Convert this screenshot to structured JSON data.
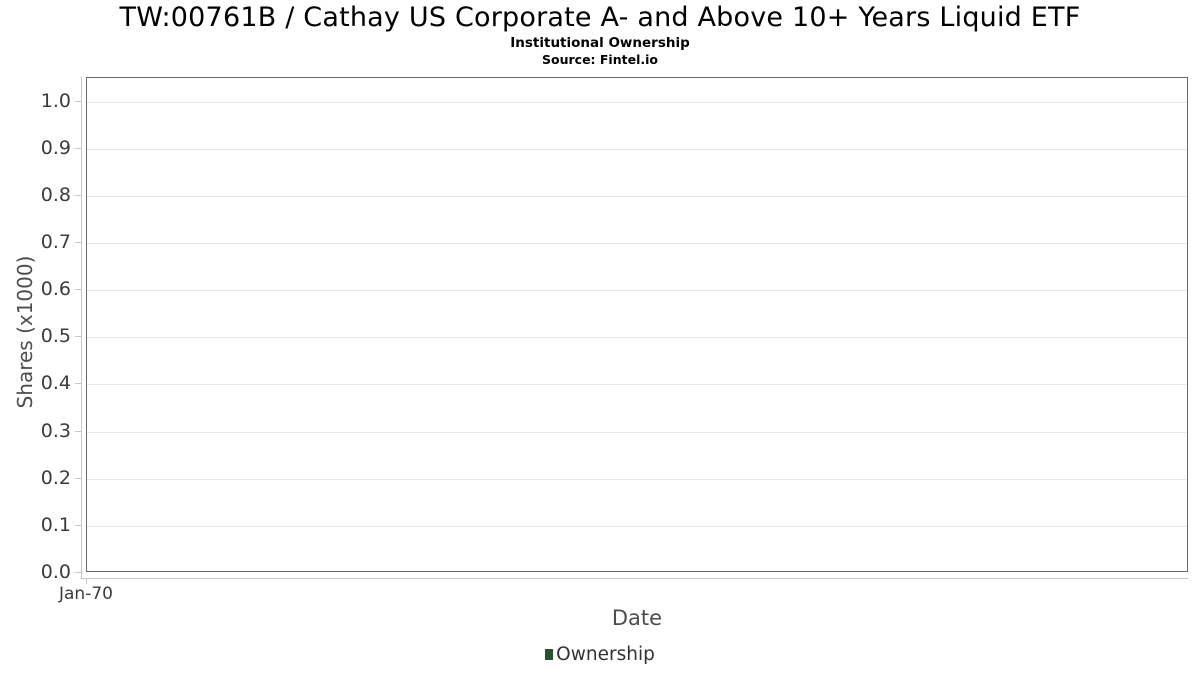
{
  "header": {
    "title": "TW:00761B / Cathay US Corporate A- and Above 10+ Years Liquid ETF",
    "subtitle": "Institutional Ownership",
    "source": "Source: Fintel.io"
  },
  "chart_data": {
    "type": "line",
    "title": "TW:00761B / Cathay US Corporate A- and Above 10+ Years Liquid ETF",
    "subtitle": "Institutional Ownership",
    "source": "Source: Fintel.io",
    "xlabel": "Date",
    "ylabel": "Shares (x1000)",
    "x_tick_labels": [
      "Jan-70"
    ],
    "y_tick_labels": [
      "0.0",
      "0.1",
      "0.2",
      "0.3",
      "0.4",
      "0.5",
      "0.6",
      "0.7",
      "0.8",
      "0.9",
      "1.0"
    ],
    "y_tick_values": [
      0,
      0.1,
      0.2,
      0.3,
      0.4,
      0.5,
      0.6,
      0.7,
      0.8,
      0.9,
      1.0
    ],
    "ylim": [
      0,
      1.05
    ],
    "grid": true,
    "legend_position": "bottom",
    "series": [
      {
        "name": "Ownership",
        "color": "#26522e",
        "x": [],
        "values": []
      }
    ]
  },
  "colors": {
    "legend_marker": "#26522e",
    "plot_border": "#67696c",
    "gridline": "#e6e6e6",
    "axis_line": "#c6c6c6",
    "tick_label": "#3c3c3c",
    "axis_title": "#4d4d4d",
    "title_text": "#000000"
  }
}
